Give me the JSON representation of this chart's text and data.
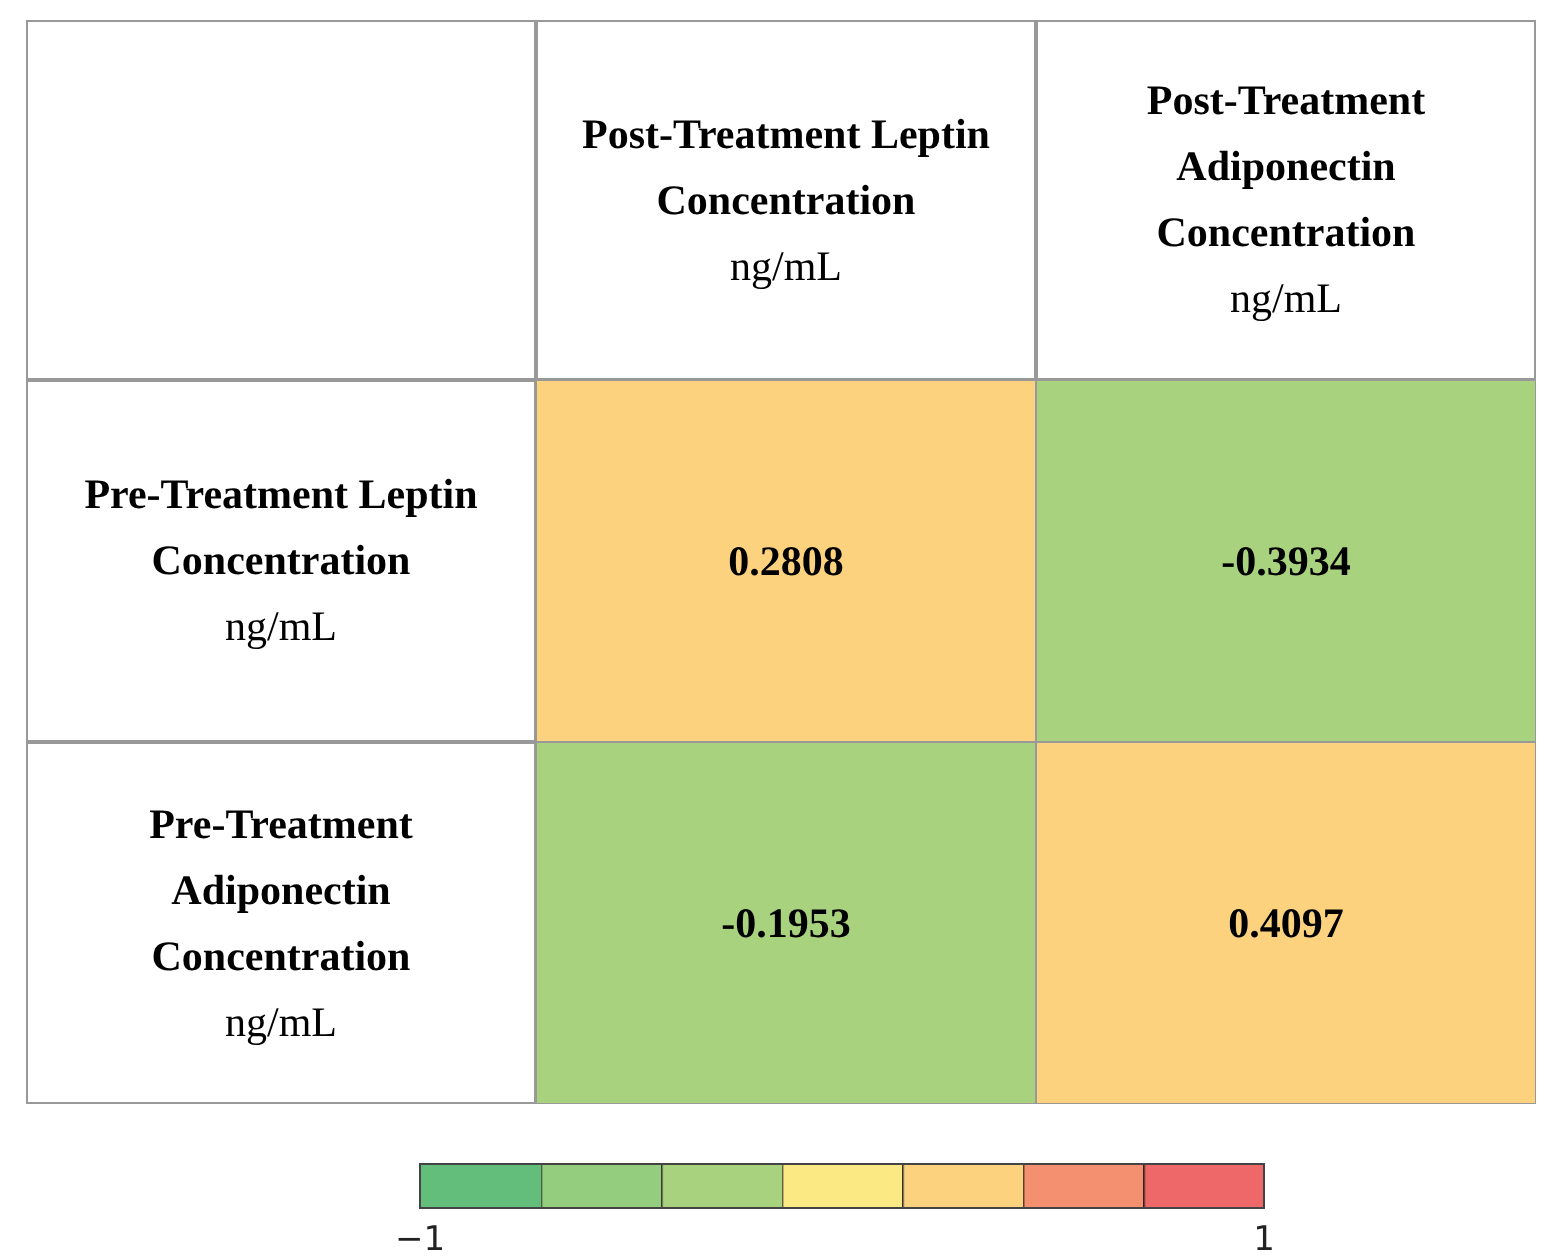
{
  "chart_data": {
    "type": "heatmap",
    "categories": [
      "Post-Treatment Leptin Concentration\nng/mL",
      "Post-Treatment Adiponectin Concentration\nng/mL"
    ],
    "y_categories": [
      "Pre-Treatment Leptin Concentration\nng/mL",
      "Pre-Treatment Adiponectin Concentration\nng/mL"
    ],
    "cells": [
      [
        0.2808,
        -0.3934
      ],
      [
        -0.1953,
        0.4097
      ]
    ],
    "clim": [
      -1,
      1
    ],
    "cticks": [
      {
        "value": -1,
        "label": "−1"
      },
      1
    ],
    "data_labels": true
  }
}
